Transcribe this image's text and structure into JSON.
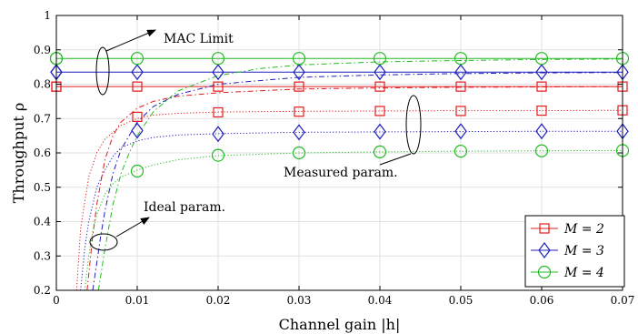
{
  "chart_data": {
    "type": "line",
    "xlabel": "Channel gain |h|",
    "ylabel": "Throughput ρ",
    "xlim": [
      0,
      0.07
    ],
    "ylim": [
      0.2,
      1
    ],
    "xticks": [
      0,
      0.01,
      0.02,
      0.03,
      0.04,
      0.05,
      0.06,
      0.07
    ],
    "xtick_labels": [
      "0",
      "0.01",
      "0.02",
      "0.03",
      "0.04",
      "0.05",
      "0.06",
      "0.07"
    ],
    "yticks": [
      0.2,
      0.3,
      0.4,
      0.5,
      0.6,
      0.7,
      0.8,
      0.9,
      1
    ],
    "ytick_labels": [
      "0.2",
      "0.3",
      "0.4",
      "0.5",
      "0.6",
      "0.7",
      "0.8",
      "0.9",
      "1"
    ],
    "grid": true,
    "legend_position": "bottom-right",
    "legend": [
      {
        "label": "M = 2",
        "color": "#e31a1c",
        "marker": "square"
      },
      {
        "label": "M = 3",
        "color": "#1f1fbf",
        "marker": "diamond"
      },
      {
        "label": "M = 4",
        "color": "#22bb22",
        "marker": "circle"
      }
    ],
    "marker_x": [
      0,
      0.01,
      0.02,
      0.03,
      0.04,
      0.05,
      0.06,
      0.07
    ],
    "series": [
      {
        "group": "MAC Limit",
        "M": 2,
        "color": "#e31a1c",
        "style": "solid",
        "x": [
          0,
          0.07
        ],
        "values": [
          0.793,
          0.793
        ],
        "marker": "square"
      },
      {
        "group": "MAC Limit",
        "M": 3,
        "color": "#1f1fbf",
        "style": "solid",
        "x": [
          0,
          0.07
        ],
        "values": [
          0.835,
          0.835
        ],
        "marker": "diamond"
      },
      {
        "group": "MAC Limit",
        "M": 4,
        "color": "#22bb22",
        "style": "solid",
        "x": [
          0,
          0.07
        ],
        "values": [
          0.875,
          0.875
        ],
        "marker": "circle"
      },
      {
        "group": "Ideal param.",
        "M": 2,
        "color": "#e31a1c",
        "style": "dashdot",
        "x": [
          0.0038,
          0.0045,
          0.005,
          0.006,
          0.007,
          0.008,
          0.01,
          0.012,
          0.015,
          0.02,
          0.03,
          0.04,
          0.05,
          0.06,
          0.07
        ],
        "values": [
          0.2,
          0.36,
          0.45,
          0.58,
          0.65,
          0.69,
          0.73,
          0.75,
          0.765,
          0.775,
          0.786,
          0.789,
          0.791,
          0.792,
          0.793
        ]
      },
      {
        "group": "Ideal param.",
        "M": 3,
        "color": "#1f1fbf",
        "style": "dashdot",
        "x": [
          0.0045,
          0.005,
          0.0055,
          0.006,
          0.007,
          0.008,
          0.01,
          0.012,
          0.015,
          0.02,
          0.03,
          0.04,
          0.05,
          0.06,
          0.07
        ],
        "values": [
          0.2,
          0.28,
          0.36,
          0.43,
          0.54,
          0.61,
          0.69,
          0.735,
          0.77,
          0.8,
          0.82,
          0.827,
          0.831,
          0.833,
          0.834
        ]
      },
      {
        "group": "Ideal param.",
        "M": 4,
        "color": "#22bb22",
        "style": "dashdot",
        "x": [
          0.0052,
          0.006,
          0.007,
          0.008,
          0.009,
          0.01,
          0.012,
          0.015,
          0.02,
          0.025,
          0.03,
          0.04,
          0.05,
          0.06,
          0.07
        ],
        "values": [
          0.2,
          0.32,
          0.45,
          0.54,
          0.6,
          0.65,
          0.72,
          0.78,
          0.825,
          0.845,
          0.856,
          0.865,
          0.869,
          0.872,
          0.873
        ]
      },
      {
        "group": "Measured param.",
        "M": 2,
        "color": "#e31a1c",
        "style": "dotted",
        "x": [
          0.0025,
          0.003,
          0.004,
          0.005,
          0.006,
          0.008,
          0.01,
          0.012,
          0.015,
          0.02,
          0.03,
          0.04,
          0.05,
          0.06,
          0.07
        ],
        "values": [
          0.2,
          0.38,
          0.53,
          0.6,
          0.64,
          0.68,
          0.7,
          0.71,
          0.715,
          0.719,
          0.721,
          0.722,
          0.723,
          0.723,
          0.724
        ],
        "marker": "square",
        "marker_values": [
          0.793,
          0.705,
          0.718,
          0.72,
          0.722,
          0.722,
          0.723,
          0.724
        ]
      },
      {
        "group": "Measured param.",
        "M": 3,
        "color": "#1f1fbf",
        "style": "dotted",
        "x": [
          0.003,
          0.0035,
          0.004,
          0.005,
          0.006,
          0.007,
          0.008,
          0.01,
          0.012,
          0.015,
          0.02,
          0.03,
          0.04,
          0.05,
          0.06,
          0.07
        ],
        "values": [
          0.2,
          0.32,
          0.4,
          0.5,
          0.55,
          0.59,
          0.615,
          0.635,
          0.645,
          0.652,
          0.656,
          0.66,
          0.661,
          0.662,
          0.663,
          0.663
        ],
        "marker": "diamond",
        "marker_values": [
          0.835,
          0.665,
          0.655,
          0.66,
          0.662,
          0.663,
          0.663,
          0.663
        ]
      },
      {
        "group": "Measured param.",
        "M": 4,
        "color": "#22bb22",
        "style": "dotted",
        "x": [
          0.0035,
          0.004,
          0.0045,
          0.005,
          0.006,
          0.007,
          0.008,
          0.01,
          0.012,
          0.015,
          0.02,
          0.03,
          0.04,
          0.05,
          0.06,
          0.07
        ],
        "values": [
          0.2,
          0.3,
          0.37,
          0.42,
          0.48,
          0.51,
          0.53,
          0.55,
          0.565,
          0.58,
          0.592,
          0.6,
          0.603,
          0.605,
          0.606,
          0.607
        ],
        "marker": "circle",
        "marker_values": [
          0.875,
          0.547,
          0.593,
          0.6,
          0.603,
          0.605,
          0.606,
          0.607
        ]
      }
    ],
    "annotations": [
      {
        "text": "MAC Limit"
      },
      {
        "text": "Measured param."
      },
      {
        "text": "Ideal param."
      }
    ]
  }
}
